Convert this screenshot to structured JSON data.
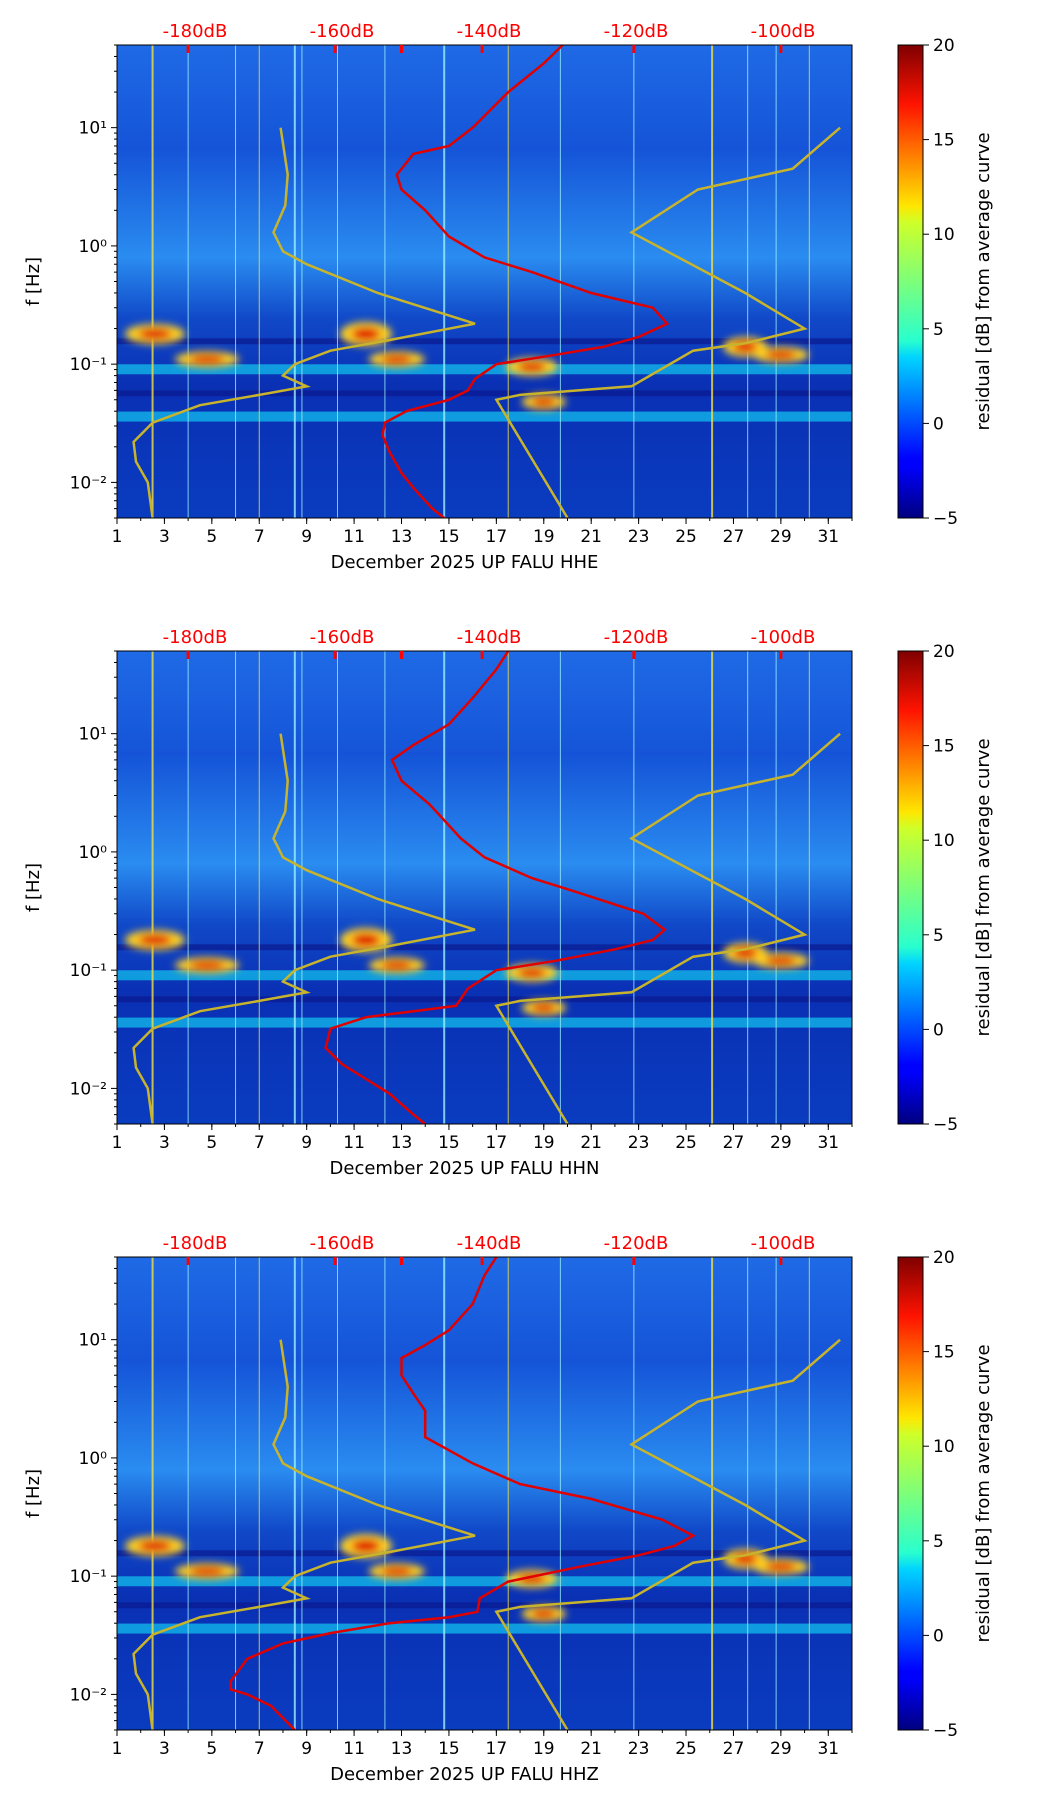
{
  "chart_data": [
    {
      "type": "heatmap",
      "xlabel": "December 2025 UP FALU  HHE",
      "ylabel": "f [Hz]",
      "colorbar_label": "residual [dB] from average curve",
      "colorbar_ticks": [
        "20",
        "15",
        "10",
        "5",
        "0",
        "−5"
      ],
      "colorbar_range": [
        -5,
        20
      ],
      "x_ticks": [
        "1",
        "3",
        "5",
        "7",
        "9",
        "11",
        "13",
        "15",
        "17",
        "19",
        "21",
        "23",
        "25",
        "27",
        "29",
        "31"
      ],
      "xlim": [
        1,
        32
      ],
      "y_ticks": [
        "10¹",
        "10⁰",
        "10⁻¹",
        "10⁻²"
      ],
      "ylim": [
        0.005,
        50
      ],
      "top_ticks": [
        "-180dB",
        "-160dB",
        "-140dB",
        "-120dB",
        "-100dB"
      ],
      "top_tick_color": "#ff0000",
      "noise_model_color": "#c8b42c",
      "psd_curve_color": "#e00000",
      "psd_curve": [
        [
          14.8,
          0.005
        ],
        [
          14.3,
          0.006
        ],
        [
          13.5,
          0.009
        ],
        [
          13,
          0.012
        ],
        [
          12.5,
          0.018
        ],
        [
          12.2,
          0.025
        ],
        [
          12.3,
          0.032
        ],
        [
          13.2,
          0.04
        ],
        [
          15,
          0.05
        ],
        [
          15.8,
          0.06
        ],
        [
          16.1,
          0.075
        ],
        [
          17,
          0.1
        ],
        [
          19.5,
          0.12
        ],
        [
          21.5,
          0.14
        ],
        [
          23,
          0.17
        ],
        [
          24.2,
          0.22
        ],
        [
          23.6,
          0.3
        ],
        [
          21,
          0.4
        ],
        [
          18.5,
          0.6
        ],
        [
          16.5,
          0.8
        ],
        [
          15,
          1.2
        ],
        [
          14,
          2
        ],
        [
          13,
          3
        ],
        [
          12.8,
          4
        ],
        [
          13.5,
          6
        ],
        [
          15,
          7
        ],
        [
          16,
          10
        ],
        [
          17.5,
          20
        ],
        [
          19,
          35
        ],
        [
          19.8,
          50
        ]
      ],
      "noise_model_low": [
        [
          2.5,
          0.005
        ],
        [
          2.3,
          0.01
        ],
        [
          1.8,
          0.015
        ],
        [
          1.7,
          0.022
        ],
        [
          2.5,
          0.032
        ],
        [
          4.5,
          0.045
        ],
        [
          7,
          0.055
        ],
        [
          9,
          0.065
        ],
        [
          8,
          0.08
        ],
        [
          8.5,
          0.1
        ],
        [
          10,
          0.13
        ],
        [
          12.5,
          0.16
        ],
        [
          16.1,
          0.22
        ],
        [
          12,
          0.4
        ],
        [
          9,
          0.7
        ],
        [
          8,
          0.9
        ],
        [
          7.6,
          1.3
        ],
        [
          8.1,
          2.2
        ],
        [
          8.2,
          4
        ],
        [
          7.9,
          10
        ]
      ],
      "noise_model_high": [
        [
          20,
          0.005
        ],
        [
          17,
          0.05
        ],
        [
          18,
          0.055
        ],
        [
          22.7,
          0.065
        ],
        [
          25.3,
          0.13
        ],
        [
          27.5,
          0.15
        ],
        [
          30,
          0.2
        ],
        [
          27.5,
          0.4
        ],
        [
          22.7,
          1.3
        ],
        [
          25.5,
          3
        ],
        [
          29.5,
          4.5
        ],
        [
          31.5,
          10
        ]
      ]
    },
    {
      "type": "heatmap",
      "xlabel": "December 2025 UP FALU  HHN",
      "ylabel": "f [Hz]",
      "colorbar_label": "residual [dB] from average curve",
      "colorbar_ticks": [
        "20",
        "15",
        "10",
        "5",
        "0",
        "−5"
      ],
      "colorbar_range": [
        -5,
        20
      ],
      "x_ticks": [
        "1",
        "3",
        "5",
        "7",
        "9",
        "11",
        "13",
        "15",
        "17",
        "19",
        "21",
        "23",
        "25",
        "27",
        "29",
        "31"
      ],
      "xlim": [
        1,
        32
      ],
      "y_ticks": [
        "10¹",
        "10⁰",
        "10⁻¹",
        "10⁻²"
      ],
      "ylim": [
        0.005,
        50
      ],
      "top_ticks": [
        "-180dB",
        "-160dB",
        "-140dB",
        "-120dB",
        "-100dB"
      ],
      "top_tick_color": "#ff0000",
      "noise_model_color": "#c8b42c",
      "psd_curve_color": "#e00000",
      "psd_curve": [
        [
          14,
          0.005
        ],
        [
          13.5,
          0.006
        ],
        [
          12.5,
          0.009
        ],
        [
          11.5,
          0.012
        ],
        [
          10.5,
          0.016
        ],
        [
          9.8,
          0.022
        ],
        [
          10,
          0.032
        ],
        [
          11.5,
          0.04
        ],
        [
          13.5,
          0.045
        ],
        [
          15.3,
          0.05
        ],
        [
          15.8,
          0.07
        ],
        [
          17,
          0.1
        ],
        [
          19.5,
          0.12
        ],
        [
          22,
          0.15
        ],
        [
          23.6,
          0.18
        ],
        [
          24.1,
          0.22
        ],
        [
          23.2,
          0.3
        ],
        [
          20.5,
          0.45
        ],
        [
          18.5,
          0.6
        ],
        [
          16.5,
          0.9
        ],
        [
          15.5,
          1.3
        ],
        [
          14.2,
          2.5
        ],
        [
          13,
          4
        ],
        [
          12.6,
          6
        ],
        [
          13.5,
          8
        ],
        [
          15,
          12
        ],
        [
          16,
          20
        ],
        [
          17,
          35
        ],
        [
          17.5,
          50
        ]
      ],
      "noise_model_low": [
        [
          2.5,
          0.005
        ],
        [
          2.3,
          0.01
        ],
        [
          1.8,
          0.015
        ],
        [
          1.7,
          0.022
        ],
        [
          2.5,
          0.032
        ],
        [
          4.5,
          0.045
        ],
        [
          7,
          0.055
        ],
        [
          9,
          0.065
        ],
        [
          8,
          0.08
        ],
        [
          8.5,
          0.1
        ],
        [
          10,
          0.13
        ],
        [
          12.5,
          0.16
        ],
        [
          16.1,
          0.22
        ],
        [
          12,
          0.4
        ],
        [
          9,
          0.7
        ],
        [
          8,
          0.9
        ],
        [
          7.6,
          1.3
        ],
        [
          8.1,
          2.2
        ],
        [
          8.2,
          4
        ],
        [
          7.9,
          10
        ]
      ],
      "noise_model_high": [
        [
          20,
          0.005
        ],
        [
          17,
          0.05
        ],
        [
          18,
          0.055
        ],
        [
          22.7,
          0.065
        ],
        [
          25.3,
          0.13
        ],
        [
          27.5,
          0.15
        ],
        [
          30,
          0.2
        ],
        [
          27.5,
          0.4
        ],
        [
          22.7,
          1.3
        ],
        [
          25.5,
          3
        ],
        [
          29.5,
          4.5
        ],
        [
          31.5,
          10
        ]
      ]
    },
    {
      "type": "heatmap",
      "xlabel": "December 2025 UP FALU  HHZ",
      "ylabel": "f [Hz]",
      "colorbar_label": "residual [dB] from average curve",
      "colorbar_ticks": [
        "20",
        "15",
        "10",
        "5",
        "0",
        "−5"
      ],
      "colorbar_range": [
        -5,
        20
      ],
      "x_ticks": [
        "1",
        "3",
        "5",
        "7",
        "9",
        "11",
        "13",
        "15",
        "17",
        "19",
        "21",
        "23",
        "25",
        "27",
        "29",
        "31"
      ],
      "xlim": [
        1,
        32
      ],
      "y_ticks": [
        "10¹",
        "10⁰",
        "10⁻¹",
        "10⁻²"
      ],
      "ylim": [
        0.005,
        50
      ],
      "top_ticks": [
        "-180dB",
        "-160dB",
        "-140dB",
        "-120dB",
        "-100dB"
      ],
      "top_tick_color": "#ff0000",
      "noise_model_color": "#c8b42c",
      "psd_curve_color": "#e00000",
      "psd_curve": [
        [
          8.5,
          0.005
        ],
        [
          7.5,
          0.008
        ],
        [
          6.5,
          0.01
        ],
        [
          5.8,
          0.011
        ],
        [
          5.8,
          0.013
        ],
        [
          6.5,
          0.02
        ],
        [
          8,
          0.027
        ],
        [
          10,
          0.033
        ],
        [
          12.5,
          0.04
        ],
        [
          15,
          0.045
        ],
        [
          16.2,
          0.05
        ],
        [
          16.3,
          0.065
        ],
        [
          17.5,
          0.09
        ],
        [
          20.5,
          0.12
        ],
        [
          23,
          0.15
        ],
        [
          24.5,
          0.18
        ],
        [
          25.3,
          0.22
        ],
        [
          24,
          0.3
        ],
        [
          21,
          0.45
        ],
        [
          18,
          0.6
        ],
        [
          16,
          0.9
        ],
        [
          14,
          1.5
        ],
        [
          14,
          2.5
        ],
        [
          13.5,
          3.5
        ],
        [
          13,
          5
        ],
        [
          13,
          7
        ],
        [
          14,
          9
        ],
        [
          15,
          12
        ],
        [
          16,
          20
        ],
        [
          16.5,
          35
        ],
        [
          17,
          50
        ]
      ],
      "noise_model_low": [
        [
          2.5,
          0.005
        ],
        [
          2.3,
          0.01
        ],
        [
          1.8,
          0.015
        ],
        [
          1.7,
          0.022
        ],
        [
          2.5,
          0.032
        ],
        [
          4.5,
          0.045
        ],
        [
          7,
          0.055
        ],
        [
          9,
          0.065
        ],
        [
          8,
          0.08
        ],
        [
          8.5,
          0.1
        ],
        [
          10,
          0.13
        ],
        [
          12.5,
          0.16
        ],
        [
          16.1,
          0.22
        ],
        [
          12,
          0.4
        ],
        [
          9,
          0.7
        ],
        [
          8,
          0.9
        ],
        [
          7.6,
          1.3
        ],
        [
          8.1,
          2.2
        ],
        [
          8.2,
          4
        ],
        [
          7.9,
          10
        ]
      ],
      "noise_model_high": [
        [
          20,
          0.005
        ],
        [
          17,
          0.05
        ],
        [
          18,
          0.055
        ],
        [
          22.7,
          0.065
        ],
        [
          25.3,
          0.13
        ],
        [
          27.5,
          0.15
        ],
        [
          30,
          0.2
        ],
        [
          27.5,
          0.4
        ],
        [
          22.7,
          1.3
        ],
        [
          25.5,
          3
        ],
        [
          29.5,
          4.5
        ],
        [
          31.5,
          10
        ]
      ]
    }
  ]
}
